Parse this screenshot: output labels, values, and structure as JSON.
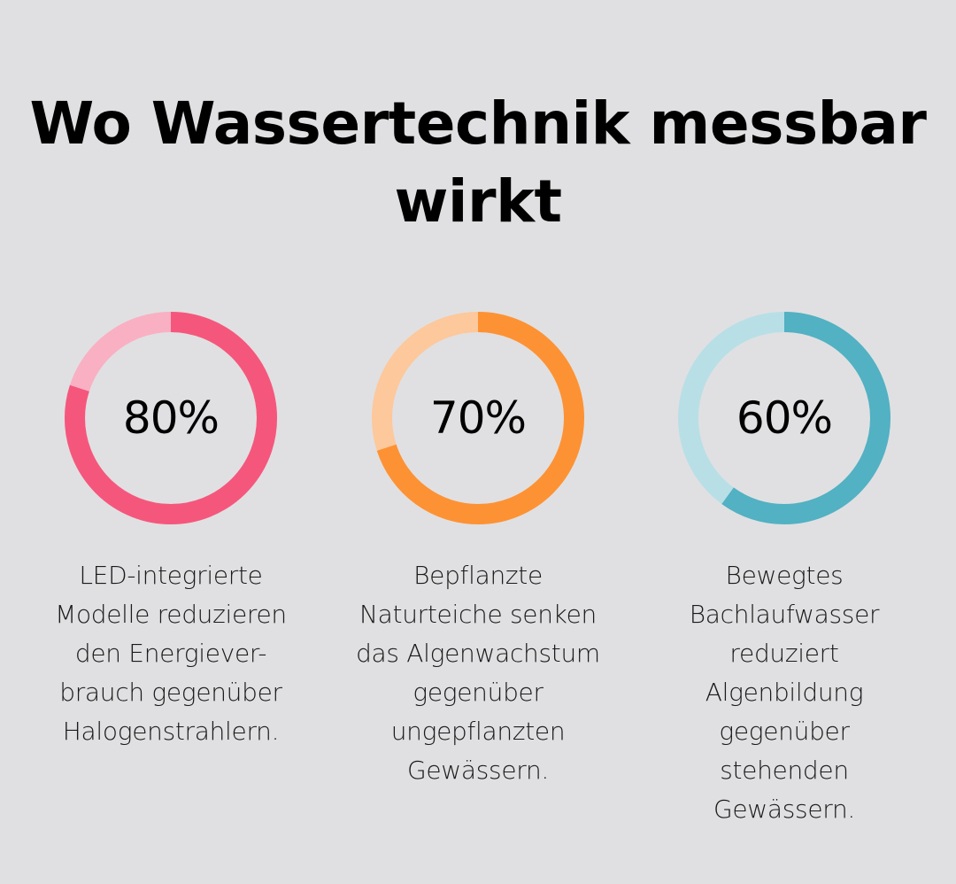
{
  "title": {
    "line1": "Wo Wassertechnik messbar",
    "line2": "wirkt"
  },
  "chart_data": [
    {
      "type": "pie",
      "variant": "donut",
      "value": 80,
      "label": "80%",
      "color": "#f5577c",
      "track_color": "#f9b0c3",
      "description": [
        "LED-integrierte",
        "Modelle reduzieren",
        "den Energiever-",
        "brauch gegenüber",
        "Halogenstrahlern."
      ]
    },
    {
      "type": "pie",
      "variant": "donut",
      "value": 70,
      "label": "70%",
      "color": "#fd9234",
      "track_color": "#fdc89b",
      "description": [
        "Bepflanzte",
        "Naturteiche senken",
        "das Algenwachstum",
        "gegenüber",
        "ungepflanzten",
        "Gewässern."
      ]
    },
    {
      "type": "pie",
      "variant": "donut",
      "value": 60,
      "label": "60%",
      "color": "#52b1c2",
      "track_color": "#b9dfe6",
      "description": [
        "Bewegtes",
        "Bachlaufwasser",
        "reduziert",
        "Algenbildung",
        "gegenüber",
        "stehenden",
        "Gewässern."
      ]
    }
  ]
}
